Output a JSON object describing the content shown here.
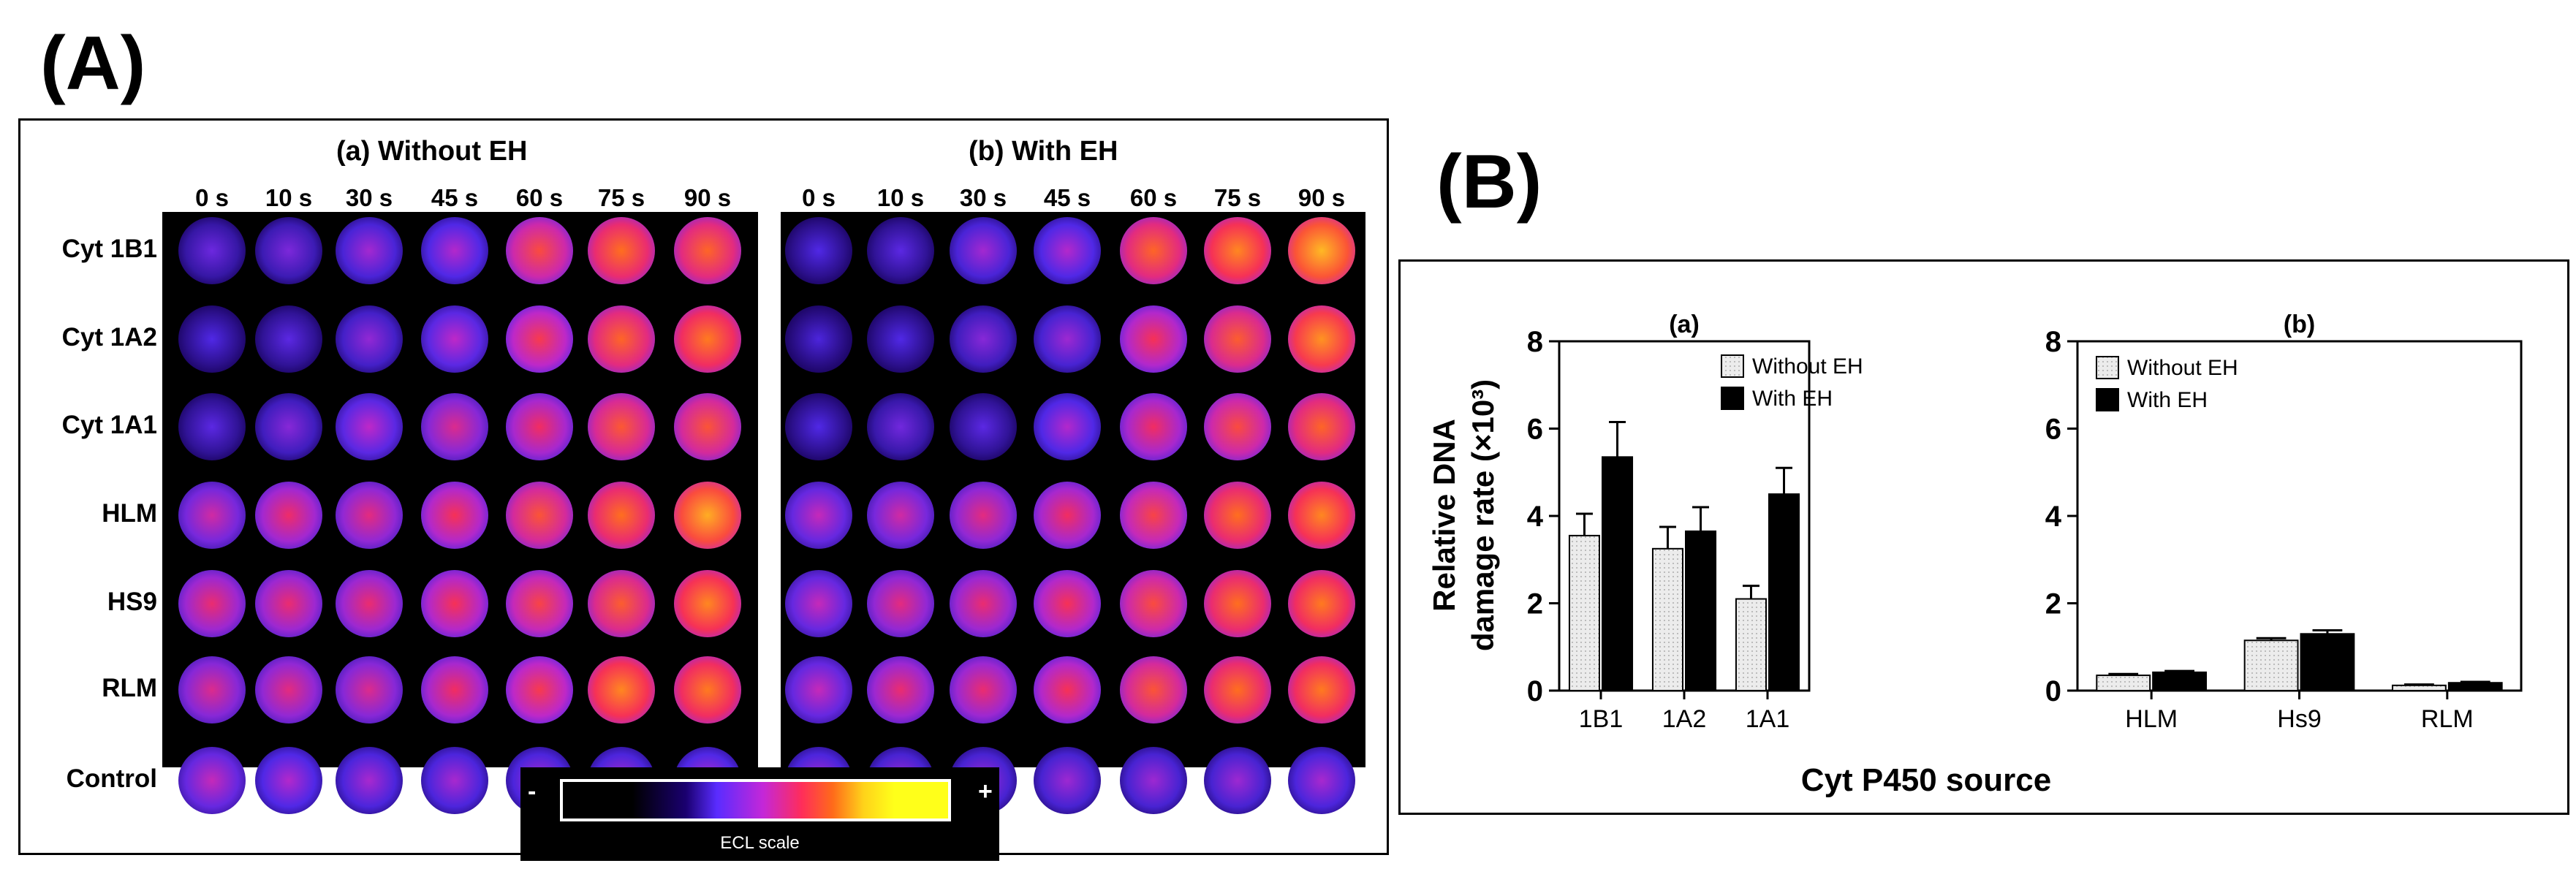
{
  "panelA": {
    "label": "(A)",
    "grids": [
      {
        "title": "(a) Without EH",
        "levels": [
          [
            0.35,
            0.38,
            0.45,
            0.48,
            0.72,
            0.8,
            0.78
          ],
          [
            0.3,
            0.32,
            0.42,
            0.5,
            0.68,
            0.78,
            0.82
          ],
          [
            0.32,
            0.4,
            0.5,
            0.58,
            0.64,
            0.75,
            0.74
          ],
          [
            0.55,
            0.63,
            0.6,
            0.66,
            0.74,
            0.8,
            0.9
          ],
          [
            0.62,
            0.62,
            0.62,
            0.66,
            0.7,
            0.76,
            0.84
          ],
          [
            0.58,
            0.6,
            0.58,
            0.64,
            0.68,
            0.84,
            0.82
          ],
          [
            0.52,
            0.48,
            0.46,
            0.46,
            0.46,
            0.46,
            0.48
          ]
        ]
      },
      {
        "title": "(b) With EH",
        "levels": [
          [
            0.3,
            0.32,
            0.45,
            0.48,
            0.78,
            0.84,
            0.92
          ],
          [
            0.28,
            0.3,
            0.4,
            0.44,
            0.66,
            0.76,
            0.86
          ],
          [
            0.3,
            0.36,
            0.32,
            0.48,
            0.64,
            0.72,
            0.78
          ],
          [
            0.52,
            0.55,
            0.6,
            0.64,
            0.7,
            0.8,
            0.84
          ],
          [
            0.52,
            0.6,
            0.62,
            0.66,
            0.72,
            0.8,
            0.82
          ],
          [
            0.52,
            0.62,
            0.62,
            0.66,
            0.74,
            0.8,
            0.82
          ],
          [
            0.46,
            0.44,
            0.44,
            0.44,
            0.44,
            0.44,
            0.46
          ]
        ]
      }
    ],
    "times": [
      "0 s",
      "10 s",
      "30 s",
      "45 s",
      "60 s",
      "75 s",
      "90 s"
    ],
    "rows": [
      "Cyt 1B1",
      "Cyt 1A2",
      "Cyt 1A1",
      "HLM",
      "HS9",
      "RLM",
      "Control"
    ],
    "scale": {
      "minus": "-",
      "plus": "+",
      "label": "ECL scale"
    }
  },
  "panelB": {
    "label": "(B)"
  },
  "chart_data": [
    {
      "type": "bar",
      "title": "(a)",
      "categories": [
        "1B1",
        "1A2",
        "1A1"
      ],
      "series": [
        {
          "name": "Without EH",
          "values": [
            3.55,
            3.25,
            2.1
          ],
          "errors": [
            0.5,
            0.5,
            0.3
          ]
        },
        {
          "name": "With EH",
          "values": [
            5.35,
            3.65,
            4.5
          ],
          "errors": [
            0.8,
            0.55,
            0.6
          ]
        }
      ],
      "ylabel_line1": "Relative DNA",
      "ylabel_line2": "damage rate (×10³)",
      "ylim": [
        0,
        8
      ],
      "yticks": [
        "0",
        "2",
        "4",
        "6",
        "8"
      ],
      "legend": "top-right"
    },
    {
      "type": "bar",
      "title": "(b)",
      "categories": [
        "HLM",
        "Hs9",
        "RLM"
      ],
      "series": [
        {
          "name": "Without EH",
          "values": [
            0.35,
            1.15,
            0.12
          ],
          "errors": [
            0.03,
            0.05,
            0.02
          ]
        },
        {
          "name": "With EH",
          "values": [
            0.42,
            1.3,
            0.18
          ],
          "errors": [
            0.03,
            0.08,
            0.02
          ]
        }
      ],
      "ylim": [
        0,
        8
      ],
      "yticks": [
        "0",
        "2",
        "4",
        "6",
        "8"
      ],
      "legend": "top-left"
    }
  ],
  "xlabel": "Cyt P450 source",
  "colors": {
    "without_fill": "#ececec",
    "with_fill": "#000000",
    "spot_bg": "#000000"
  }
}
